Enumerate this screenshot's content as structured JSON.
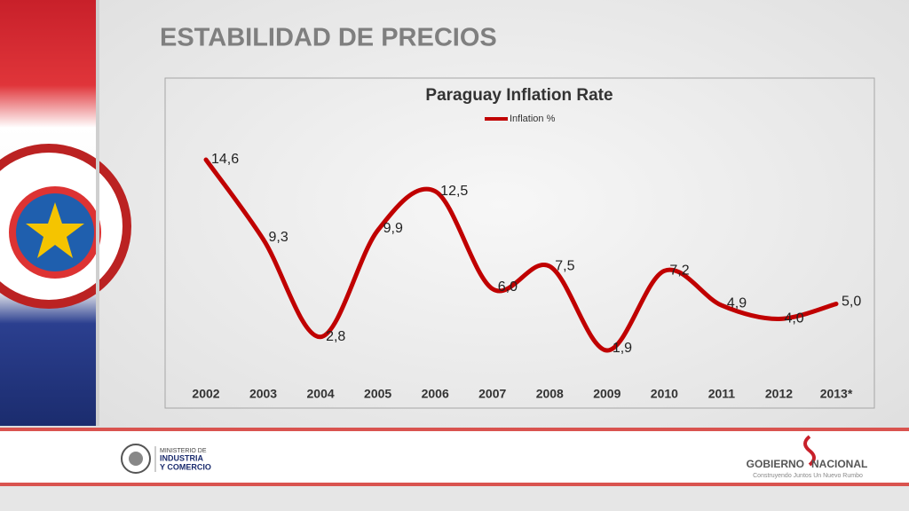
{
  "slide_title": "ESTABILIDAD DE PRECIOS",
  "chart_data": {
    "type": "line",
    "title": "Paraguay Inflation Rate",
    "categories": [
      "2002",
      "2003",
      "2004",
      "2005",
      "2006",
      "2007",
      "2008",
      "2009",
      "2010",
      "2011",
      "2012",
      "2013*"
    ],
    "series": [
      {
        "name": "Inflation %",
        "color": "#c00000",
        "values": [
          14.6,
          9.3,
          2.8,
          9.9,
          12.5,
          6.0,
          7.5,
          1.9,
          7.2,
          4.9,
          4.0,
          5.0
        ],
        "value_labels": [
          "14,6",
          "9,3",
          "2,8",
          "9,9",
          "12,5",
          "6,0",
          "7,5",
          "1,9",
          "7,2",
          "4,9",
          "4,0",
          "5,0"
        ]
      }
    ],
    "legend": "top",
    "smooth": true
  },
  "footer": {
    "ministry": [
      "MINISTERIO DE",
      "INDUSTRIA",
      "Y COMERCIO"
    ],
    "government": [
      "GOBIERNO",
      "NACIONAL"
    ],
    "slogan": "Construyendo Juntos Un Nuevo Rumbo"
  }
}
